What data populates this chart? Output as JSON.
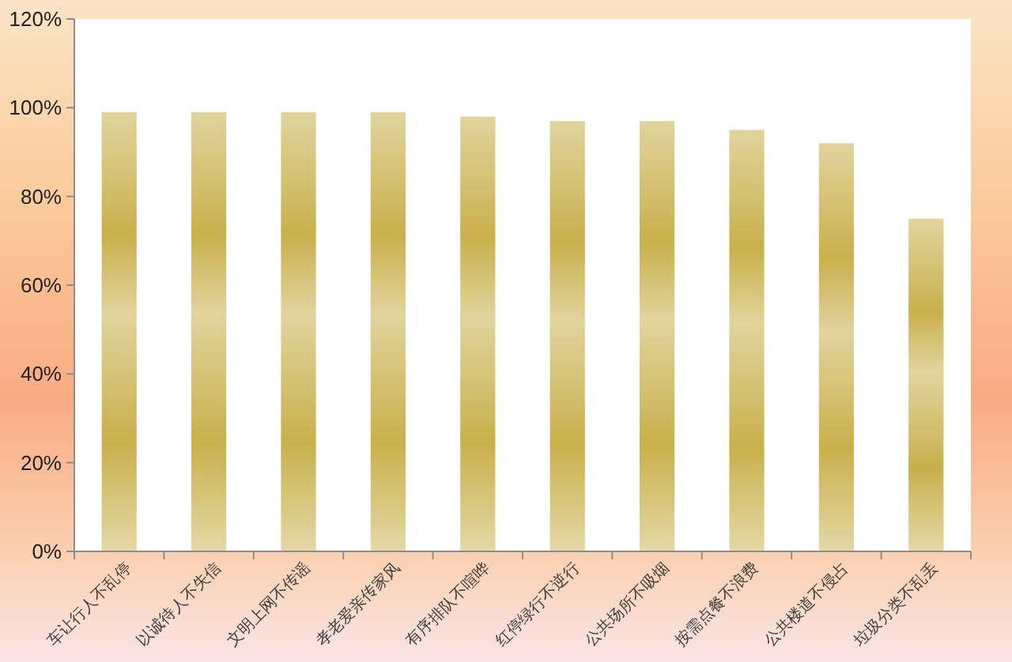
{
  "chart_data": {
    "type": "bar",
    "categories": [
      "车让行人不乱停",
      "以诚待人不失信",
      "文明上网不传谣",
      "孝老爱亲传家风",
      "有序排队不喧哗",
      "红停绿行不逆行",
      "公共场所不吸烟",
      "按需点餐不浪费",
      "公共楼道不侵占",
      "垃圾分类不乱丢"
    ],
    "values": [
      99,
      99,
      99,
      99,
      98,
      97,
      97,
      95,
      92,
      75
    ],
    "color": "#c9b04c",
    "ylim": [
      0,
      120
    ],
    "yticks": [
      {
        "value": 0,
        "label": "0%"
      },
      {
        "value": 20,
        "label": "20%"
      },
      {
        "value": 40,
        "label": "40%"
      },
      {
        "value": 60,
        "label": "60%"
      },
      {
        "value": 80,
        "label": "80%"
      },
      {
        "value": 100,
        "label": "100%"
      },
      {
        "value": 120,
        "label": "120%"
      }
    ]
  }
}
